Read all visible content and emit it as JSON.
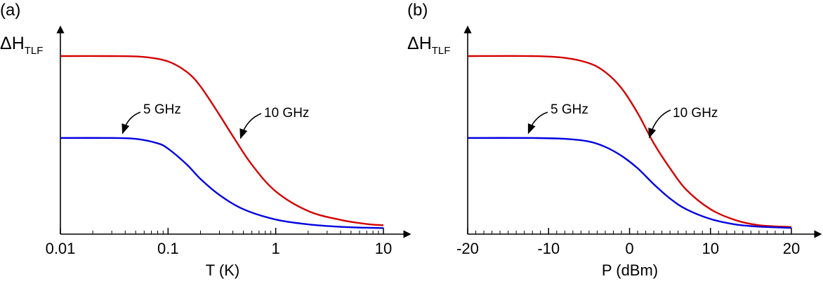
{
  "chart_data": [
    {
      "type": "line",
      "panel_label": "(a)",
      "ylabel_main": "ΔH",
      "ylabel_sub": "TLF",
      "xlabel": "T (K)",
      "xscale": "log",
      "xlim": [
        0.01,
        10
      ],
      "x_ticks": [
        {
          "value": 0.01,
          "label": "0.01"
        },
        {
          "value": 0.1,
          "label": "0.1"
        },
        {
          "value": 1,
          "label": "1"
        },
        {
          "value": 10,
          "label": "10"
        }
      ],
      "ylim": [
        0,
        1
      ],
      "grid": false,
      "series": [
        {
          "name": "10 GHz",
          "color": "#d40000",
          "x": [
            0.01,
            0.03,
            0.06,
            0.1,
            0.15,
            0.2,
            0.3,
            0.4,
            0.6,
            1,
            2,
            4,
            7,
            10
          ],
          "y": [
            1.0,
            1.0,
            0.995,
            0.97,
            0.91,
            0.83,
            0.67,
            0.55,
            0.39,
            0.24,
            0.13,
            0.08,
            0.057,
            0.05
          ]
        },
        {
          "name": "5 GHz",
          "color": "#0000e0",
          "x": [
            0.01,
            0.03,
            0.05,
            0.08,
            0.1,
            0.15,
            0.2,
            0.3,
            0.5,
            1,
            2,
            4,
            7,
            10
          ],
          "y": [
            0.54,
            0.54,
            0.535,
            0.51,
            0.48,
            0.39,
            0.31,
            0.22,
            0.14,
            0.082,
            0.055,
            0.041,
            0.036,
            0.034
          ]
        }
      ],
      "annotations": [
        {
          "text": "10 GHz",
          "target_x": 0.5,
          "target_y": 0.54
        },
        {
          "text": "5 GHz",
          "target_x": 0.038,
          "target_y": 0.6
        }
      ]
    },
    {
      "type": "line",
      "panel_label": "(b)",
      "ylabel_main": "ΔH",
      "ylabel_sub": "TLF",
      "xlabel": "P (dBm)",
      "xscale": "linear",
      "xlim": [
        -20,
        20
      ],
      "x_ticks": [
        {
          "value": -20,
          "label": "-20"
        },
        {
          "value": -10,
          "label": "-10"
        },
        {
          "value": 0,
          "label": "0"
        },
        {
          "value": 10,
          "label": "10"
        },
        {
          "value": 20,
          "label": "20"
        }
      ],
      "ylim": [
        0,
        1
      ],
      "grid": false,
      "series": [
        {
          "name": "10 GHz",
          "color": "#d40000",
          "x": [
            -20,
            -12,
            -8,
            -5,
            -3,
            -1,
            1,
            3,
            5,
            7,
            10,
            13,
            16,
            20
          ],
          "y": [
            1.0,
            1.0,
            0.99,
            0.96,
            0.91,
            0.82,
            0.68,
            0.51,
            0.37,
            0.25,
            0.14,
            0.08,
            0.05,
            0.04
          ]
        },
        {
          "name": "5 GHz",
          "color": "#0000e0",
          "x": [
            -20,
            -12,
            -8,
            -5,
            -3,
            -1,
            1,
            3,
            5,
            7,
            10,
            13,
            16,
            20
          ],
          "y": [
            0.54,
            0.54,
            0.535,
            0.52,
            0.49,
            0.44,
            0.37,
            0.28,
            0.2,
            0.14,
            0.085,
            0.055,
            0.042,
            0.035
          ]
        }
      ],
      "annotations": [
        {
          "text": "10 GHz",
          "target_x": 2.5,
          "target_y": 0.53
        },
        {
          "text": "5 GHz",
          "target_x": -12.3,
          "target_y": 0.6
        }
      ]
    }
  ]
}
